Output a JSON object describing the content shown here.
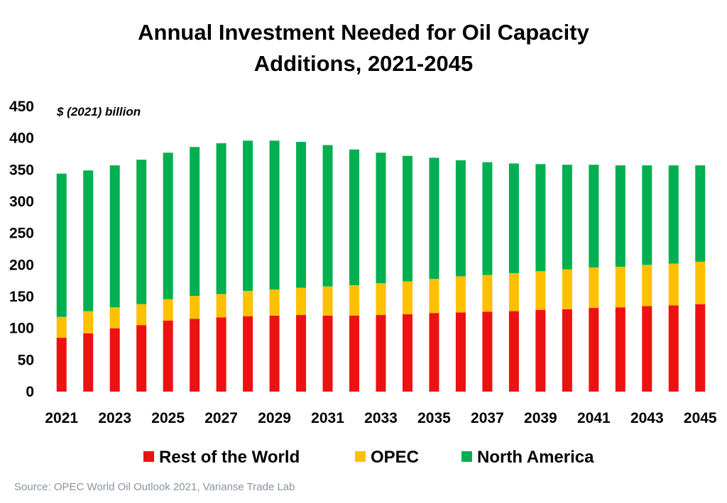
{
  "chart_data": {
    "type": "bar",
    "stacked": true,
    "title_line1": "Annual Investment Needed for Oil Capacity",
    "title_line2": "Additions, 2021-2045",
    "unit_label": "$ (2021) billion",
    "ylim": [
      0,
      450
    ],
    "yticks": [
      0,
      50,
      100,
      150,
      200,
      250,
      300,
      350,
      400,
      450
    ],
    "categories": [
      "2021",
      "2022",
      "2023",
      "2024",
      "2025",
      "2026",
      "2027",
      "2028",
      "2029",
      "2030",
      "2031",
      "2032",
      "2033",
      "2034",
      "2035",
      "2036",
      "2037",
      "2038",
      "2039",
      "2040",
      "2041",
      "2042",
      "2043",
      "2044",
      "2045"
    ],
    "x_tick_labels": [
      "2021",
      "",
      "2023",
      "",
      "2025",
      "",
      "2027",
      "",
      "2029",
      "",
      "2031",
      "",
      "2033",
      "",
      "2035",
      "",
      "2037",
      "",
      "2039",
      "",
      "2041",
      "",
      "2043",
      "",
      "2045"
    ],
    "series": [
      {
        "name": "Rest of the World",
        "color": "#ee1111",
        "values": [
          85,
          92,
          100,
          105,
          112,
          115,
          117,
          119,
          120,
          121,
          120,
          120,
          121,
          122,
          124,
          125,
          126,
          127,
          129,
          130,
          132,
          133,
          135,
          136,
          138
        ]
      },
      {
        "name": "OPEC",
        "color": "#ffc000",
        "values": [
          33,
          35,
          33,
          33,
          34,
          36,
          37,
          40,
          41,
          43,
          46,
          48,
          50,
          52,
          54,
          57,
          58,
          60,
          61,
          63,
          64,
          64,
          65,
          66,
          67
        ]
      },
      {
        "name": "North America",
        "color": "#00b050",
        "values": [
          226,
          222,
          224,
          228,
          231,
          235,
          238,
          237,
          235,
          230,
          223,
          214,
          206,
          198,
          191,
          183,
          178,
          173,
          169,
          165,
          162,
          160,
          157,
          155,
          152
        ]
      }
    ],
    "legend_position": "bottom",
    "grid": false
  },
  "source_text": "Source: OPEC World Oil Outlook 2021, Varianse Trade Lab"
}
